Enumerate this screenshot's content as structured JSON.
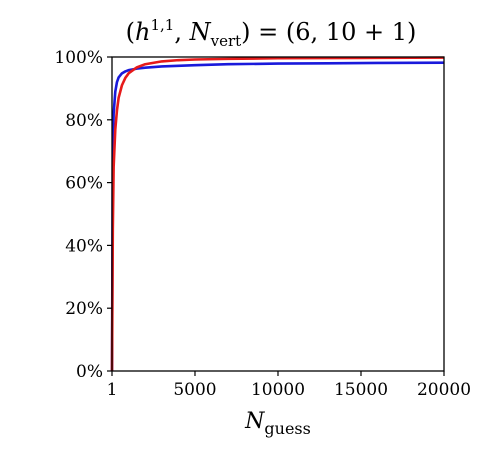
{
  "chart_data": {
    "type": "line",
    "title": "(h^{1,1}, N_{vert}) = (6, 10 + 1)",
    "title_parts": {
      "open": "(",
      "h": "h",
      "h_sup": "1,1",
      "comma": ", ",
      "n": "N",
      "n_sub": "vert",
      "rest": ") = (6, 10 + 1)"
    },
    "xlabel": "N_guess",
    "xlabel_parts": {
      "main": "N",
      "sub": "guess"
    },
    "ylabel": "",
    "xlim": [
      1,
      20000
    ],
    "ylim": [
      0,
      100
    ],
    "x_ticks": [
      1,
      5000,
      10000,
      15000,
      20000
    ],
    "x_tick_labels": [
      "1",
      "5000",
      "10000",
      "15000",
      "20000"
    ],
    "y_ticks": [
      0,
      20,
      40,
      60,
      80,
      100
    ],
    "y_tick_labels": [
      "0%",
      "20%",
      "40%",
      "60%",
      "80%",
      "100%"
    ],
    "grid": false,
    "legend": false,
    "series": [
      {
        "color": "#1a1adb",
        "x": [
          1,
          50,
          100,
          200,
          300,
          400,
          600,
          800,
          1000,
          1500,
          2000,
          3000,
          5000,
          7000,
          10000,
          13000,
          16000,
          20000
        ],
        "y": [
          0,
          70,
          82,
          89,
          92,
          93.5,
          94.8,
          95.4,
          95.8,
          96.3,
          96.6,
          97.0,
          97.4,
          97.7,
          97.9,
          98.0,
          98.1,
          98.2
        ]
      },
      {
        "color": "#e61a1a",
        "x": [
          1,
          50,
          100,
          200,
          300,
          400,
          600,
          800,
          1000,
          1500,
          2000,
          3000,
          4000,
          5000,
          7000,
          10000,
          15000,
          20000
        ],
        "y": [
          0,
          45,
          65,
          77,
          83,
          87,
          91,
          93.3,
          94.8,
          96.7,
          97.7,
          98.6,
          99.0,
          99.2,
          99.4,
          99.6,
          99.7,
          99.8
        ]
      }
    ]
  }
}
